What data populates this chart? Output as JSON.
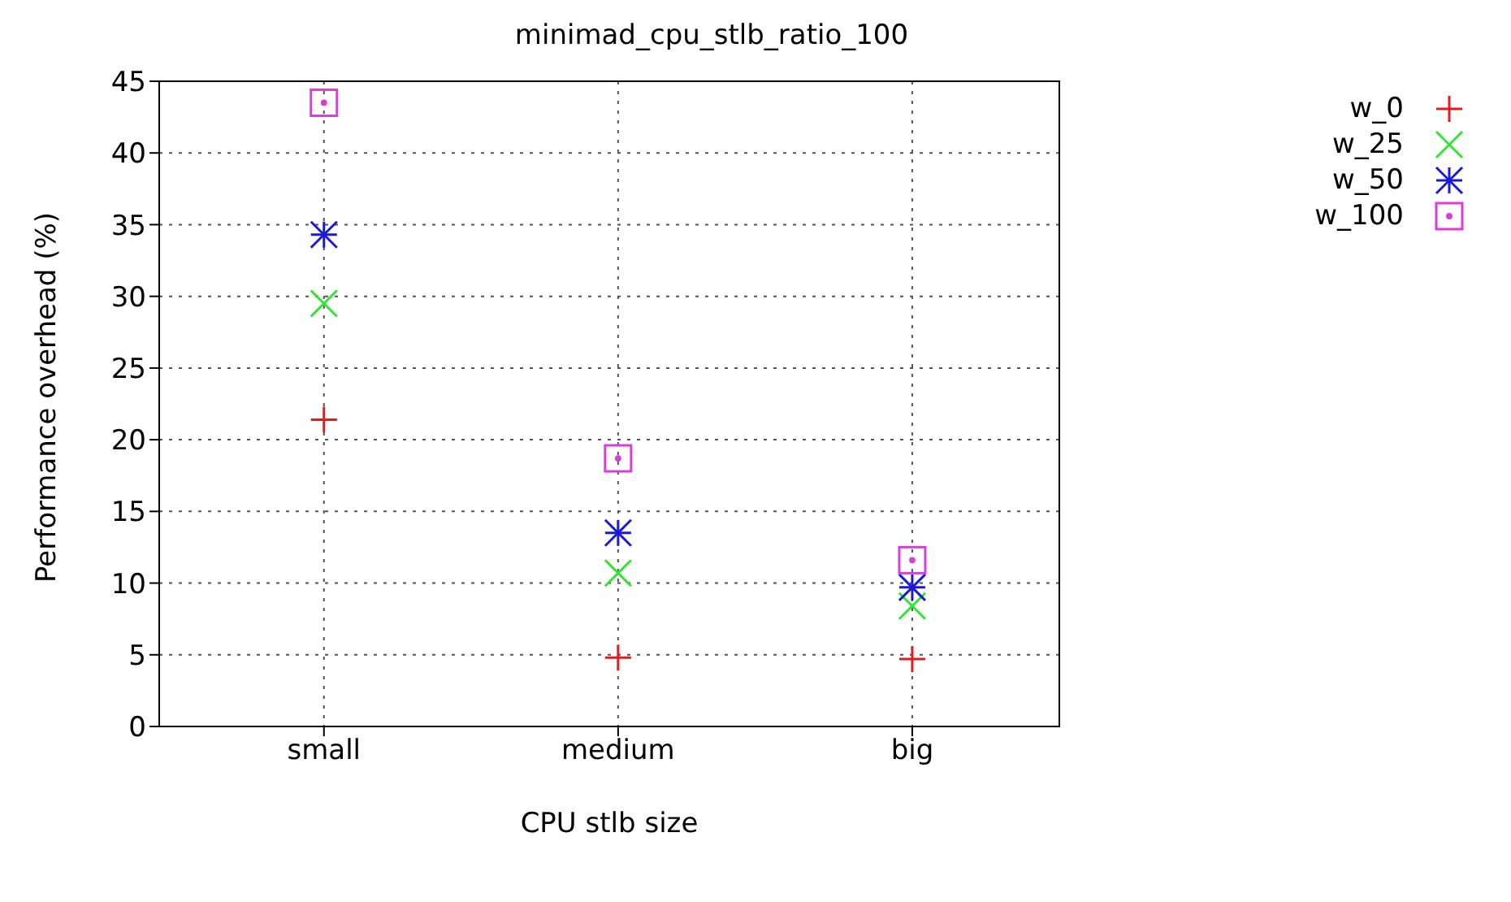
{
  "chart_data": {
    "type": "scatter",
    "title": "minimad_cpu_stlb_ratio_100",
    "xlabel": "CPU stlb size",
    "ylabel": "Performance overhead (%)",
    "categories": [
      "small",
      "medium",
      "big"
    ],
    "series": [
      {
        "name": "w_0",
        "color": "#e41a1c",
        "marker": "plus",
        "values": [
          21.4,
          4.8,
          4.7
        ]
      },
      {
        "name": "w_25",
        "color": "#2ee62e",
        "marker": "x",
        "values": [
          29.5,
          10.7,
          8.4
        ]
      },
      {
        "name": "w_50",
        "color": "#1a1ad6",
        "marker": "cross",
        "values": [
          34.3,
          13.5,
          9.7
        ]
      },
      {
        "name": "w_100",
        "color": "#d83fd8",
        "marker": "square",
        "values": [
          43.5,
          18.7,
          11.6
        ]
      }
    ],
    "ylim": [
      0,
      45
    ],
    "yticks": [
      0,
      5,
      10,
      15,
      20,
      25,
      30,
      35,
      40,
      45
    ],
    "grid": true,
    "legend": "top right"
  }
}
